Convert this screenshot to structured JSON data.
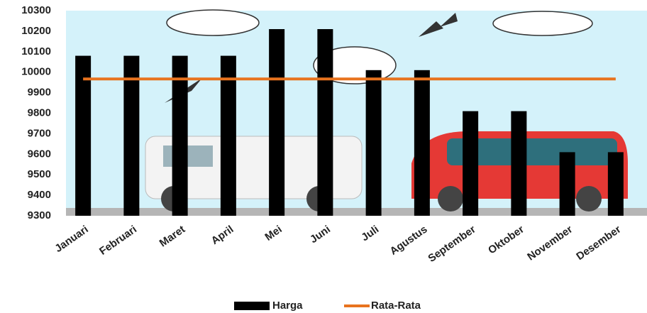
{
  "chart_data": {
    "type": "bar",
    "categories": [
      "Januari",
      "Februari",
      "Maret",
      "April",
      "Mei",
      "Juni",
      "Juli",
      "Agustus",
      "September",
      "Oktober",
      "November",
      "Desember"
    ],
    "series": [
      {
        "name": "Harga",
        "color": "#000000",
        "values": [
          10080,
          10080,
          10080,
          10080,
          10210,
          10210,
          10010,
          10010,
          9810,
          9810,
          9610,
          9610
        ]
      },
      {
        "name": "Rata-Rata",
        "color": "#e8731e",
        "type": "line",
        "values": [
          9967,
          9967,
          9967,
          9967,
          9967,
          9967,
          9967,
          9967,
          9967,
          9967,
          9967,
          9967
        ]
      }
    ],
    "ylim": [
      9300,
      10300
    ],
    "yticks": [
      9300,
      9400,
      9500,
      9600,
      9700,
      9800,
      9900,
      10000,
      10100,
      10200,
      10300
    ],
    "grid": false,
    "legend": "bottom"
  }
}
